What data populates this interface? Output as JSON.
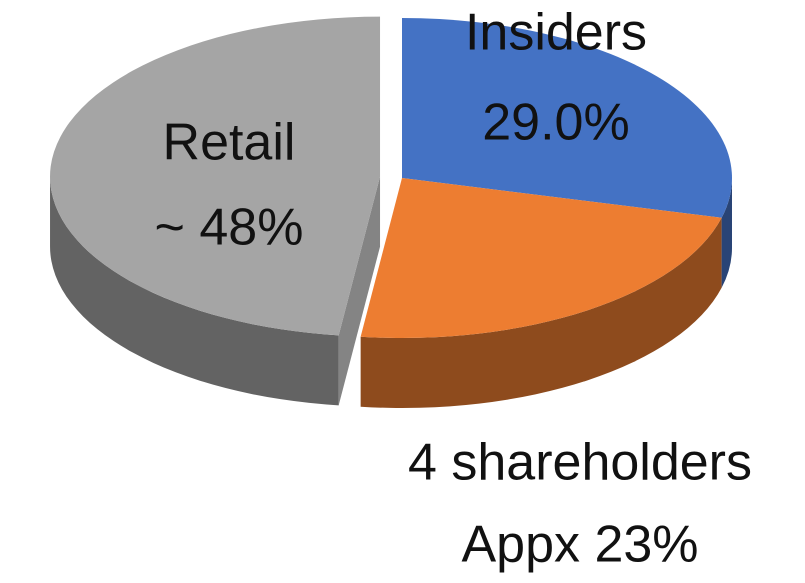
{
  "chart_data": {
    "type": "pie",
    "categories": [
      "Insiders",
      "4 shareholders",
      "Retail"
    ],
    "values": [
      29,
      23,
      48
    ],
    "value_labels": [
      "29.0%",
      "Appx 23%",
      "~ 48%"
    ],
    "colors": [
      "#4472c4",
      "#ed7d31",
      "#a5a5a5"
    ]
  }
}
